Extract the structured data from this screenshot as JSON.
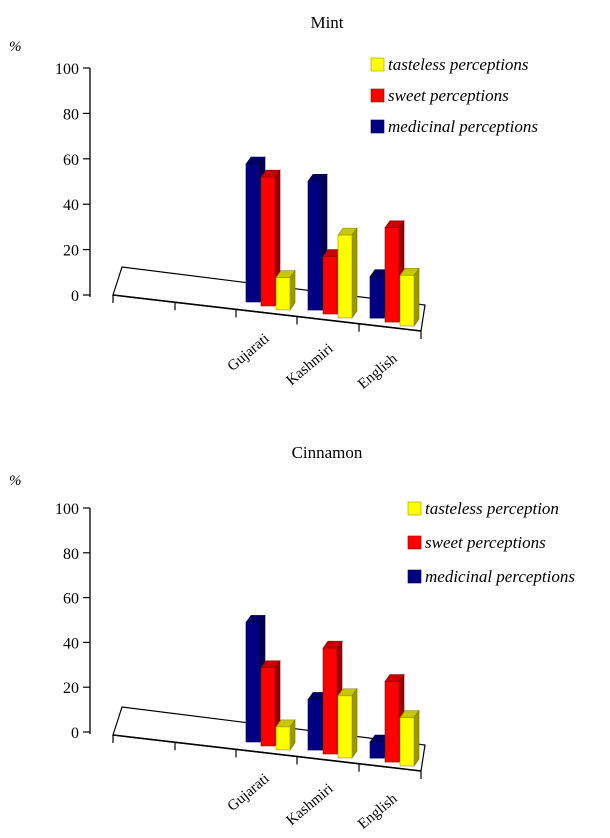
{
  "chart_data": [
    {
      "type": "bar",
      "title": "Mint",
      "ylabel": "%",
      "ylim": [
        0,
        100
      ],
      "yticks": [
        "0",
        "20",
        "40",
        "60",
        "80",
        "100"
      ],
      "categories": [
        "Gujarati",
        "Kashmiri",
        "English"
      ],
      "series": [
        {
          "name": "tasteless perceptions",
          "color": "#ffff00",
          "values": [
            14,
            36,
            22
          ]
        },
        {
          "name": "sweet perceptions",
          "color": "#ff0000",
          "values": [
            56,
            25,
            41
          ]
        },
        {
          "name": "medicinal perceptions",
          "color": "#000080",
          "values": [
            60,
            56,
            18
          ]
        }
      ],
      "legend_order": [
        0,
        1,
        2
      ],
      "legend": "top-right",
      "grid": false
    },
    {
      "type": "bar",
      "title": "Cinnamon",
      "ylabel": "%",
      "ylim": [
        0,
        100
      ],
      "yticks": [
        "0",
        "20",
        "40",
        "60",
        "80",
        "100"
      ],
      "categories": [
        "Gujarati",
        "Kashmiri",
        "English"
      ],
      "series": [
        {
          "name": "tasteless perception",
          "color": "#ffff00",
          "values": [
            10,
            27,
            21
          ]
        },
        {
          "name": "sweet perceptions",
          "color": "#ff0000",
          "values": [
            34,
            46,
            35
          ]
        },
        {
          "name": "medicinal perceptions",
          "color": "#000080",
          "values": [
            52,
            22,
            7
          ]
        }
      ],
      "legend_order": [
        0,
        1,
        2
      ],
      "legend": "top-right",
      "grid": false
    }
  ]
}
